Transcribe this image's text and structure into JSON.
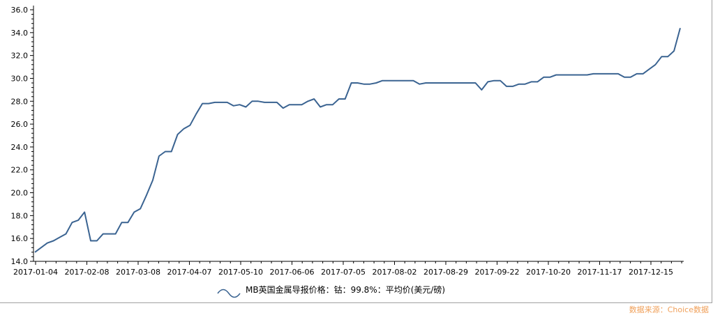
{
  "chart_data": {
    "type": "line",
    "title": "",
    "xlabel": "",
    "ylabel": "",
    "ylim": [
      14.0,
      36.0
    ],
    "yticks": [
      "14.0",
      "16.0",
      "18.0",
      "20.0",
      "22.0",
      "24.0",
      "26.0",
      "28.0",
      "30.0",
      "32.0",
      "34.0",
      "36.0"
    ],
    "xticks": [
      "2017-01-04",
      "2017-02-08",
      "2017-03-08",
      "2017-04-07",
      "2017-05-10",
      "2017-06-06",
      "2017-07-05",
      "2017-08-02",
      "2017-08-29",
      "2017-09-22",
      "2017-10-20",
      "2017-11-17",
      "2017-12-15"
    ],
    "grid": false,
    "legend": "bottom",
    "series": [
      {
        "name": "MB英国金属导报价格：钴：99.8%：平均价(美元/磅)",
        "color": "#3a6391",
        "values": [
          14.8,
          15.2,
          15.6,
          15.8,
          16.1,
          16.4,
          17.4,
          17.6,
          18.3,
          15.8,
          15.8,
          16.4,
          16.4,
          16.4,
          17.4,
          17.4,
          18.3,
          18.6,
          19.8,
          21.1,
          23.2,
          23.6,
          23.6,
          25.1,
          25.6,
          25.9,
          26.9,
          27.8,
          27.8,
          27.9,
          27.9,
          27.9,
          27.6,
          27.7,
          27.5,
          28.0,
          28.0,
          27.9,
          27.9,
          27.9,
          27.4,
          27.7,
          27.7,
          27.7,
          28.0,
          28.2,
          27.5,
          27.7,
          27.7,
          28.2,
          28.2,
          29.6,
          29.6,
          29.5,
          29.5,
          29.6,
          29.8,
          29.8,
          29.8,
          29.8,
          29.8,
          29.8,
          29.5,
          29.6,
          29.6,
          29.6,
          29.6,
          29.6,
          29.6,
          29.6,
          29.6,
          29.6,
          29.0,
          29.7,
          29.8,
          29.8,
          29.3,
          29.3,
          29.5,
          29.5,
          29.7,
          29.7,
          30.1,
          30.1,
          30.3,
          30.3,
          30.3,
          30.3,
          30.3,
          30.3,
          30.4,
          30.4,
          30.4,
          30.4,
          30.4,
          30.1,
          30.1,
          30.4,
          30.4,
          30.8,
          31.2,
          31.9,
          31.9,
          32.4,
          34.4
        ]
      }
    ]
  },
  "legend_label": "MB英国金属导报价格：钴：99.8%：平均价(美元/磅)",
  "source_text": "数据来源：Choice数据"
}
